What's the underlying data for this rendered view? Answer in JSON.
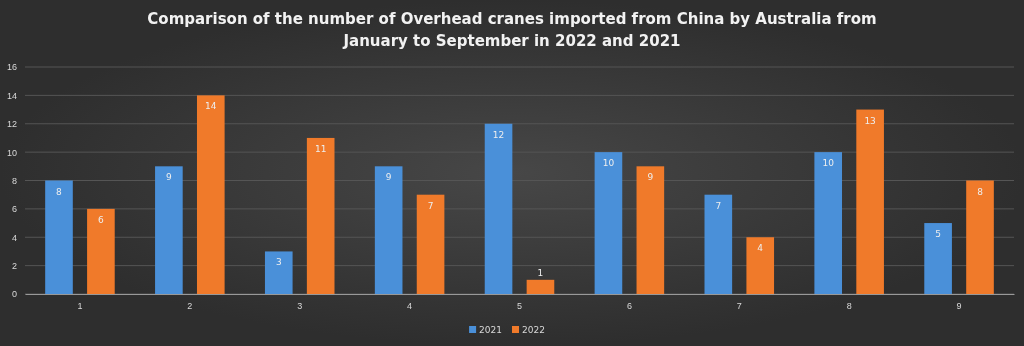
{
  "chart_data": {
    "type": "bar",
    "title": "Comparison of the number of Overhead cranes imported from China by Australia from January to September in 2022 and 2021",
    "categories": [
      "1",
      "2",
      "3",
      "4",
      "5",
      "6",
      "7",
      "8",
      "9"
    ],
    "series": [
      {
        "name": "2021",
        "color": "#4a90d9",
        "values": [
          8,
          9,
          3,
          9,
          12,
          10,
          7,
          10,
          5
        ]
      },
      {
        "name": "2022",
        "color": "#f07a2a",
        "values": [
          6,
          14,
          11,
          7,
          1,
          9,
          4,
          13,
          8
        ]
      }
    ],
    "ylim": [
      0,
      16
    ],
    "yticks": [
      0,
      2,
      4,
      6,
      8,
      10,
      12,
      14,
      16
    ],
    "grid": "y",
    "legend": "bottom",
    "data_labels": true
  }
}
